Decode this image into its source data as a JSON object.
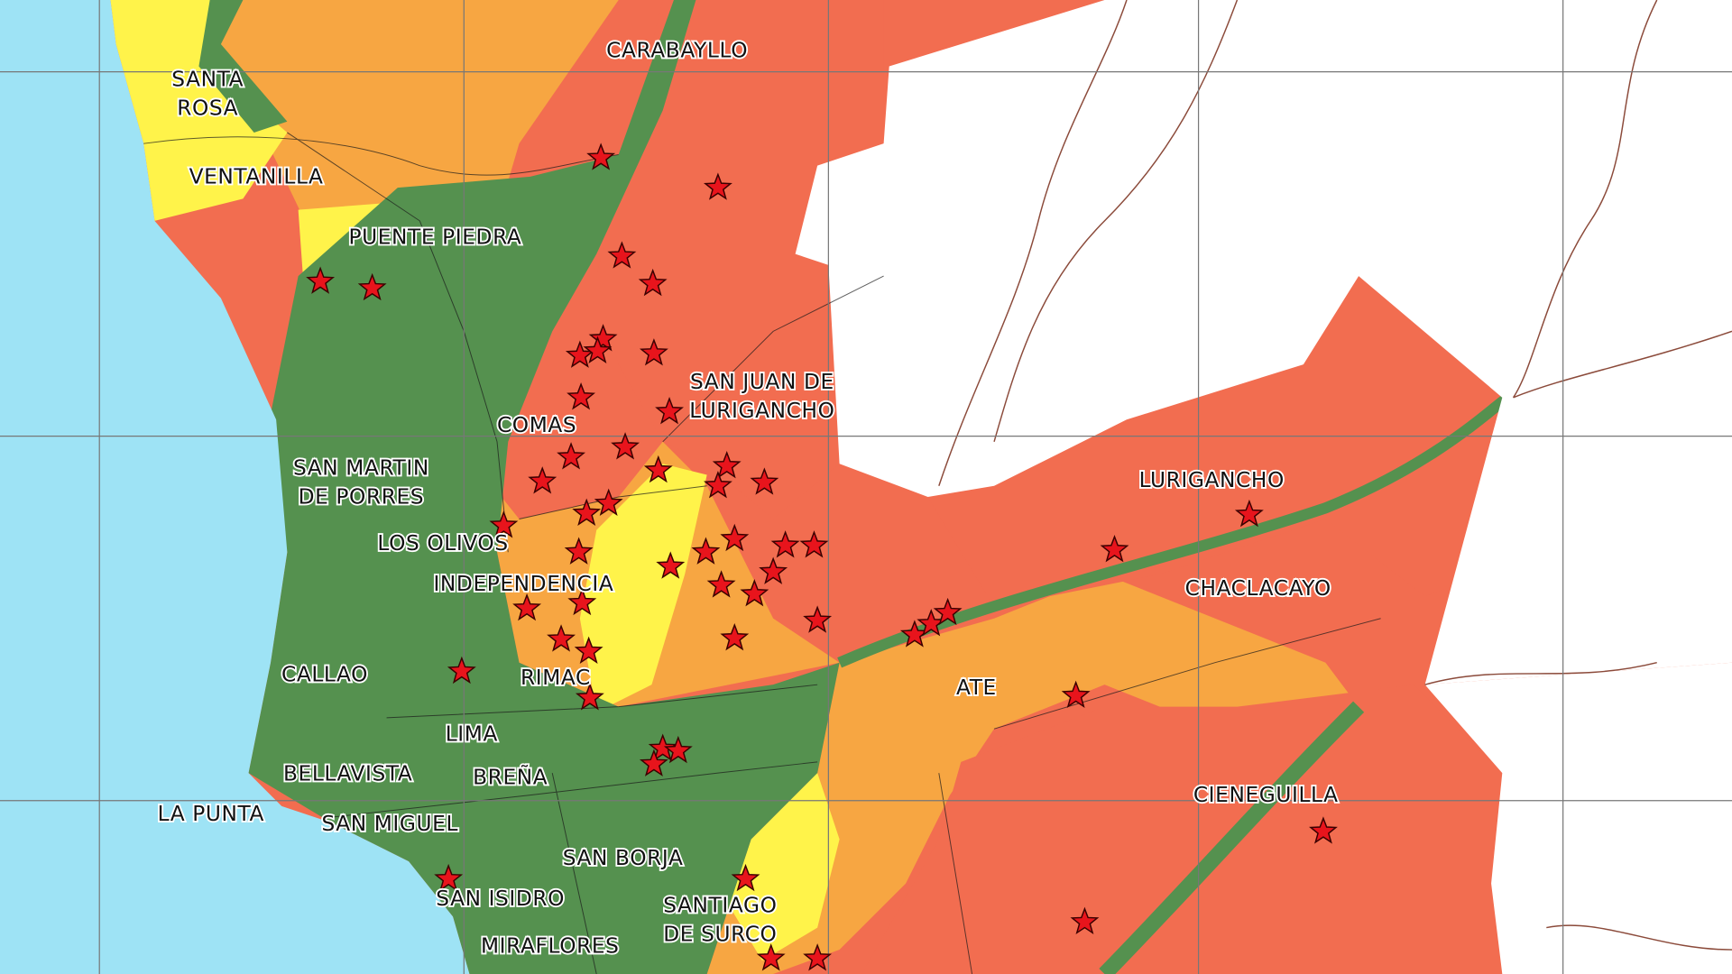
{
  "districts": [
    [
      "CARABAYLLO"
    ],
    [
      "SANTA",
      "ROSA"
    ],
    [
      "VENTANILLA"
    ],
    [
      "PUENTE PIEDRA"
    ],
    [
      "SAN JUAN DE",
      "LURIGANCHO"
    ],
    [
      "COMAS"
    ],
    [
      "SAN MARTIN",
      "DE PORRES"
    ],
    [
      "LURIGANCHO"
    ],
    [
      "LOS OLIVOS"
    ],
    [
      "INDEPENDENCIA"
    ],
    [
      "CHACLACAYO"
    ],
    [
      "CALLAO"
    ],
    [
      "RIMAC"
    ],
    [
      "ATE"
    ],
    [
      "LIMA"
    ],
    [
      "BELLAVISTA"
    ],
    [
      "BREÑA"
    ],
    [
      "LA PUNTA"
    ],
    [
      "CIENEGUILLA"
    ],
    [
      "SAN MIGUEL"
    ],
    [
      "SAN BORJA"
    ],
    [
      "SAN ISIDRO"
    ],
    [
      "SANTIAGO",
      "DE SURCO"
    ],
    [
      "MIRAFLORES"
    ]
  ]
}
